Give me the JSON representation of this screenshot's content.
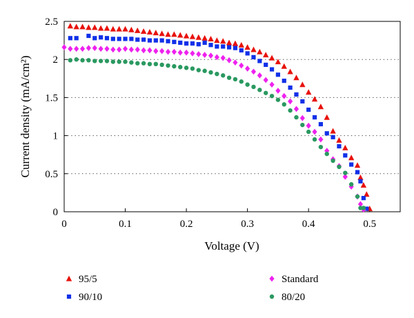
{
  "chart_data": {
    "type": "scatter",
    "xlabel": "Voltage (V)",
    "ylabel": "Current density (mA/cm²)",
    "xlim": [
      0,
      0.55
    ],
    "ylim": [
      0,
      2.5
    ],
    "xticks": [
      "0",
      "0.1",
      "0.2",
      "0.3",
      "0.4",
      "0.5"
    ],
    "yticks": [
      "0",
      "0.5",
      "1",
      "1.5",
      "2",
      "2.5"
    ],
    "grid": "horizontal dotted",
    "legend_position": "bottom",
    "series": [
      {
        "name": "95/5",
        "color": "#e8120c",
        "marker": "triangle",
        "points": [
          [
            0.01,
            2.44
          ],
          [
            0.02,
            2.43
          ],
          [
            0.03,
            2.43
          ],
          [
            0.04,
            2.42
          ],
          [
            0.05,
            2.42
          ],
          [
            0.06,
            2.41
          ],
          [
            0.07,
            2.41
          ],
          [
            0.08,
            2.4
          ],
          [
            0.09,
            2.4
          ],
          [
            0.1,
            2.4
          ],
          [
            0.11,
            2.39
          ],
          [
            0.12,
            2.38
          ],
          [
            0.13,
            2.37
          ],
          [
            0.14,
            2.36
          ],
          [
            0.15,
            2.35
          ],
          [
            0.16,
            2.34
          ],
          [
            0.17,
            2.33
          ],
          [
            0.18,
            2.33
          ],
          [
            0.19,
            2.32
          ],
          [
            0.2,
            2.31
          ],
          [
            0.21,
            2.3
          ],
          [
            0.22,
            2.29
          ],
          [
            0.23,
            2.28
          ],
          [
            0.24,
            2.27
          ],
          [
            0.25,
            2.25
          ],
          [
            0.26,
            2.24
          ],
          [
            0.27,
            2.22
          ],
          [
            0.28,
            2.21
          ],
          [
            0.29,
            2.19
          ],
          [
            0.3,
            2.16
          ],
          [
            0.31,
            2.13
          ],
          [
            0.32,
            2.1
          ],
          [
            0.33,
            2.06
          ],
          [
            0.34,
            2.02
          ],
          [
            0.35,
            1.97
          ],
          [
            0.36,
            1.91
          ],
          [
            0.37,
            1.84
          ],
          [
            0.38,
            1.76
          ],
          [
            0.39,
            1.67
          ],
          [
            0.4,
            1.57
          ],
          [
            0.41,
            1.48
          ],
          [
            0.42,
            1.38
          ],
          [
            0.43,
            1.24
          ],
          [
            0.44,
            1.06
          ],
          [
            0.45,
            0.94
          ],
          [
            0.46,
            0.84
          ],
          [
            0.47,
            0.71
          ],
          [
            0.48,
            0.61
          ],
          [
            0.485,
            0.45
          ],
          [
            0.49,
            0.35
          ],
          [
            0.495,
            0.23
          ],
          [
            0.5,
            0.04
          ]
        ]
      },
      {
        "name": "90/10",
        "color": "#1030e8",
        "marker": "square",
        "points": [
          [
            0.01,
            2.28
          ],
          [
            0.02,
            2.28
          ],
          [
            0.04,
            2.31
          ],
          [
            0.05,
            2.28
          ],
          [
            0.06,
            2.29
          ],
          [
            0.07,
            2.28
          ],
          [
            0.08,
            2.27
          ],
          [
            0.09,
            2.27
          ],
          [
            0.1,
            2.27
          ],
          [
            0.11,
            2.27
          ],
          [
            0.12,
            2.26
          ],
          [
            0.13,
            2.26
          ],
          [
            0.14,
            2.25
          ],
          [
            0.15,
            2.25
          ],
          [
            0.16,
            2.25
          ],
          [
            0.17,
            2.24
          ],
          [
            0.18,
            2.23
          ],
          [
            0.19,
            2.22
          ],
          [
            0.2,
            2.21
          ],
          [
            0.21,
            2.21
          ],
          [
            0.22,
            2.2
          ],
          [
            0.23,
            2.22
          ],
          [
            0.24,
            2.19
          ],
          [
            0.25,
            2.17
          ],
          [
            0.26,
            2.17
          ],
          [
            0.27,
            2.16
          ],
          [
            0.28,
            2.15
          ],
          [
            0.29,
            2.12
          ],
          [
            0.3,
            2.08
          ],
          [
            0.31,
            2.03
          ],
          [
            0.32,
            1.98
          ],
          [
            0.33,
            1.93
          ],
          [
            0.34,
            1.87
          ],
          [
            0.35,
            1.8
          ],
          [
            0.36,
            1.72
          ],
          [
            0.37,
            1.63
          ],
          [
            0.38,
            1.54
          ],
          [
            0.39,
            1.45
          ],
          [
            0.4,
            1.34
          ],
          [
            0.41,
            1.24
          ],
          [
            0.42,
            1.15
          ],
          [
            0.43,
            1.03
          ],
          [
            0.44,
            0.98
          ],
          [
            0.45,
            0.86
          ],
          [
            0.46,
            0.74
          ],
          [
            0.47,
            0.62
          ],
          [
            0.48,
            0.52
          ],
          [
            0.485,
            0.4
          ],
          [
            0.49,
            0.18
          ],
          [
            0.495,
            0.04
          ]
        ]
      },
      {
        "name": "Standard",
        "color": "#ee22ee",
        "marker": "diamond",
        "points": [
          [
            0.0,
            2.16
          ],
          [
            0.01,
            2.14
          ],
          [
            0.02,
            2.14
          ],
          [
            0.03,
            2.14
          ],
          [
            0.04,
            2.15
          ],
          [
            0.05,
            2.15
          ],
          [
            0.06,
            2.14
          ],
          [
            0.07,
            2.14
          ],
          [
            0.08,
            2.13
          ],
          [
            0.09,
            2.13
          ],
          [
            0.1,
            2.14
          ],
          [
            0.11,
            2.13
          ],
          [
            0.12,
            2.13
          ],
          [
            0.13,
            2.12
          ],
          [
            0.14,
            2.12
          ],
          [
            0.15,
            2.11
          ],
          [
            0.16,
            2.11
          ],
          [
            0.17,
            2.1
          ],
          [
            0.18,
            2.1
          ],
          [
            0.19,
            2.09
          ],
          [
            0.2,
            2.09
          ],
          [
            0.21,
            2.08
          ],
          [
            0.22,
            2.07
          ],
          [
            0.23,
            2.06
          ],
          [
            0.24,
            2.05
          ],
          [
            0.25,
            2.03
          ],
          [
            0.26,
            2.02
          ],
          [
            0.27,
            1.99
          ],
          [
            0.28,
            1.96
          ],
          [
            0.29,
            1.92
          ],
          [
            0.3,
            1.88
          ],
          [
            0.31,
            1.84
          ],
          [
            0.32,
            1.79
          ],
          [
            0.33,
            1.73
          ],
          [
            0.34,
            1.67
          ],
          [
            0.35,
            1.59
          ],
          [
            0.36,
            1.52
          ],
          [
            0.37,
            1.45
          ],
          [
            0.38,
            1.35
          ],
          [
            0.39,
            1.23
          ],
          [
            0.4,
            1.13
          ],
          [
            0.41,
            1.05
          ],
          [
            0.42,
            0.95
          ],
          [
            0.43,
            0.8
          ],
          [
            0.44,
            0.69
          ],
          [
            0.45,
            0.6
          ],
          [
            0.46,
            0.46
          ],
          [
            0.47,
            0.33
          ],
          [
            0.48,
            0.2
          ],
          [
            0.485,
            0.1
          ],
          [
            0.49,
            0.03
          ]
        ]
      },
      {
        "name": "80/20",
        "color": "#2a9960",
        "marker": "circle",
        "points": [
          [
            0.01,
            1.99
          ],
          [
            0.02,
            2.0
          ],
          [
            0.03,
            1.99
          ],
          [
            0.04,
            1.99
          ],
          [
            0.05,
            1.98
          ],
          [
            0.06,
            1.98
          ],
          [
            0.07,
            1.98
          ],
          [
            0.08,
            1.97
          ],
          [
            0.09,
            1.97
          ],
          [
            0.1,
            1.97
          ],
          [
            0.11,
            1.96
          ],
          [
            0.12,
            1.95
          ],
          [
            0.13,
            1.95
          ],
          [
            0.14,
            1.94
          ],
          [
            0.15,
            1.94
          ],
          [
            0.16,
            1.93
          ],
          [
            0.17,
            1.92
          ],
          [
            0.18,
            1.91
          ],
          [
            0.19,
            1.9
          ],
          [
            0.2,
            1.89
          ],
          [
            0.21,
            1.88
          ],
          [
            0.22,
            1.86
          ],
          [
            0.23,
            1.85
          ],
          [
            0.24,
            1.83
          ],
          [
            0.25,
            1.81
          ],
          [
            0.26,
            1.79
          ],
          [
            0.27,
            1.76
          ],
          [
            0.28,
            1.74
          ],
          [
            0.29,
            1.71
          ],
          [
            0.3,
            1.67
          ],
          [
            0.31,
            1.64
          ],
          [
            0.32,
            1.6
          ],
          [
            0.33,
            1.56
          ],
          [
            0.34,
            1.52
          ],
          [
            0.35,
            1.47
          ],
          [
            0.36,
            1.41
          ],
          [
            0.37,
            1.33
          ],
          [
            0.38,
            1.24
          ],
          [
            0.39,
            1.14
          ],
          [
            0.4,
            1.05
          ],
          [
            0.41,
            0.95
          ],
          [
            0.42,
            0.85
          ],
          [
            0.43,
            0.76
          ],
          [
            0.44,
            0.67
          ],
          [
            0.45,
            0.59
          ],
          [
            0.46,
            0.51
          ],
          [
            0.47,
            0.36
          ],
          [
            0.48,
            0.2
          ],
          [
            0.485,
            0.05
          ],
          [
            0.49,
            0.05
          ]
        ]
      }
    ]
  }
}
